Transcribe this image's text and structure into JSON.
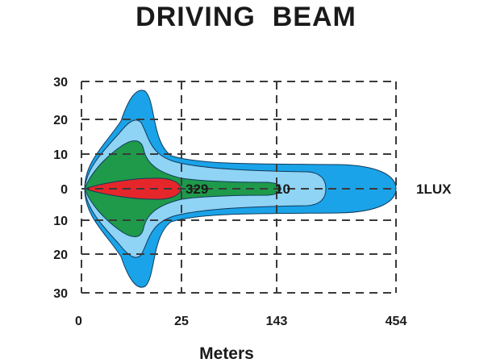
{
  "chart_data": {
    "type": "area",
    "title": "DRIVING  BEAM",
    "xlabel": "Meters",
    "ylabel": "",
    "x_ticks": [
      "0",
      "25",
      "143",
      "454"
    ],
    "y_ticks": [
      "30",
      "20",
      "10",
      "0",
      "10",
      "20",
      "30"
    ],
    "grid": true,
    "series": [
      {
        "name": "1LUX",
        "value": 454,
        "color": "#1aa3e8"
      },
      {
        "value": 143,
        "color": "#8fd3f5"
      },
      {
        "name": "10",
        "value": 143,
        "color": "#1e9a4a"
      },
      {
        "name": "329",
        "value": 25,
        "color": "#e5262b"
      }
    ],
    "annotations": [
      "329",
      "10",
      "1LUX"
    ]
  }
}
